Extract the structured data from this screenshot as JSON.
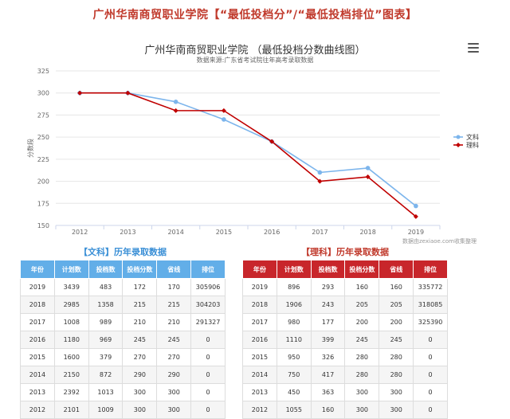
{
  "page_title": "广州华南商贸职业学院【“最低投档分”/“最低投档排位”图表】",
  "menu_icon": "hamburger-menu-icon",
  "chart_data": {
    "type": "line",
    "title": "广州华南商贸职业学院 （最低投档分数曲线图）",
    "subtitle": "数据来源:广东省考试院往年高考录取数据",
    "ylabel": "分数段",
    "xlabel": "",
    "x": [
      "2012",
      "2013",
      "2014",
      "2015",
      "2016",
      "2017",
      "2018",
      "2019"
    ],
    "yticks": [
      150,
      175,
      200,
      225,
      250,
      275,
      300,
      325
    ],
    "ylim": [
      150,
      325
    ],
    "grid": true,
    "legend_position": "right",
    "series": [
      {
        "name": "文科",
        "color": "#7cb5ec",
        "values": [
          300,
          300,
          290,
          270,
          245,
          210,
          215,
          172
        ]
      },
      {
        "name": "理科",
        "color": "#c00000",
        "values": [
          300,
          300,
          280,
          280,
          245,
          200,
          205,
          160
        ]
      }
    ],
    "credit": "数据由zexiaoe.com收集整理"
  },
  "tables": {
    "columns": [
      "年份",
      "计划数",
      "投档数",
      "投档分数",
      "省线",
      "排位"
    ],
    "wenke": {
      "title": "【文科】历年录取数据",
      "rows": [
        [
          "2019",
          "3439",
          "483",
          "172",
          "170",
          "305906"
        ],
        [
          "2018",
          "2985",
          "1358",
          "215",
          "215",
          "304203"
        ],
        [
          "2017",
          "1008",
          "989",
          "210",
          "210",
          "291327"
        ],
        [
          "2016",
          "1180",
          "969",
          "245",
          "245",
          "0"
        ],
        [
          "2015",
          "1600",
          "379",
          "270",
          "270",
          "0"
        ],
        [
          "2014",
          "2150",
          "872",
          "290",
          "290",
          "0"
        ],
        [
          "2013",
          "2392",
          "1013",
          "300",
          "300",
          "0"
        ],
        [
          "2012",
          "2101",
          "1009",
          "300",
          "300",
          "0"
        ]
      ]
    },
    "like": {
      "title": "【理科】历年录取数据",
      "rows": [
        [
          "2019",
          "896",
          "293",
          "160",
          "160",
          "335772"
        ],
        [
          "2018",
          "1906",
          "243",
          "205",
          "205",
          "318085"
        ],
        [
          "2017",
          "980",
          "177",
          "200",
          "200",
          "325390"
        ],
        [
          "2016",
          "1110",
          "399",
          "245",
          "245",
          "0"
        ],
        [
          "2015",
          "950",
          "326",
          "280",
          "280",
          "0"
        ],
        [
          "2014",
          "750",
          "417",
          "280",
          "280",
          "0"
        ],
        [
          "2013",
          "450",
          "363",
          "300",
          "300",
          "0"
        ],
        [
          "2012",
          "1055",
          "160",
          "300",
          "300",
          "0"
        ]
      ]
    }
  }
}
